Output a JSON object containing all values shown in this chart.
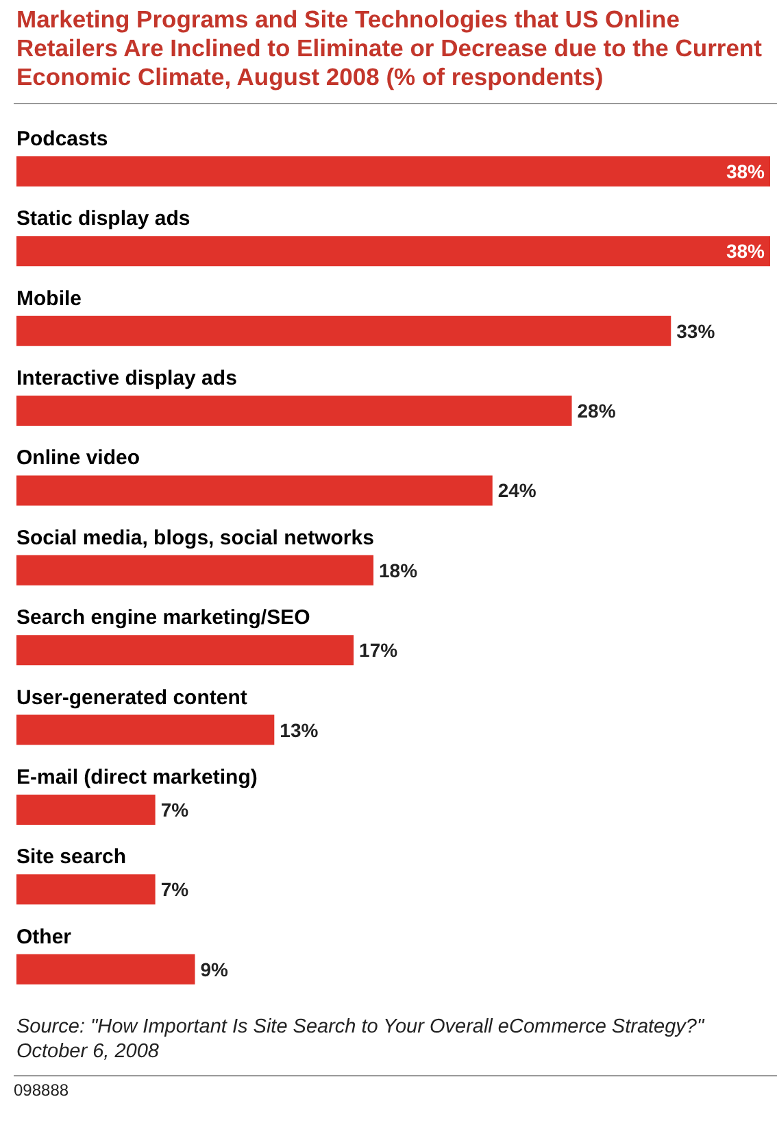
{
  "chart_data": {
    "type": "bar",
    "orientation": "horizontal",
    "title": "Marketing Programs and Site Technologies that US Online Retailers Are Inclined to Eliminate or Decrease due to the Current Economic Climate, August 2008 (% of respondents)",
    "categories": [
      "Podcasts",
      "Static display ads",
      "Mobile",
      "Interactive display ads",
      "Online video",
      "Social media, blogs, social networks",
      "Search engine marketing/SEO",
      "User-generated content",
      "E-mail (direct marketing)",
      "Site search",
      "Other"
    ],
    "values": [
      38,
      38,
      33,
      28,
      24,
      18,
      17,
      13,
      7,
      7,
      9
    ],
    "value_labels": [
      "38%",
      "38%",
      "33%",
      "28%",
      "24%",
      "18%",
      "17%",
      "13%",
      "7%",
      "7%",
      "9%"
    ],
    "color": "#e0332b",
    "annotations": [
      "Source: \"How Important Is Site Search to Your Overall eCommerce Strategy?\" October 6, 2008",
      "098888"
    ]
  }
}
